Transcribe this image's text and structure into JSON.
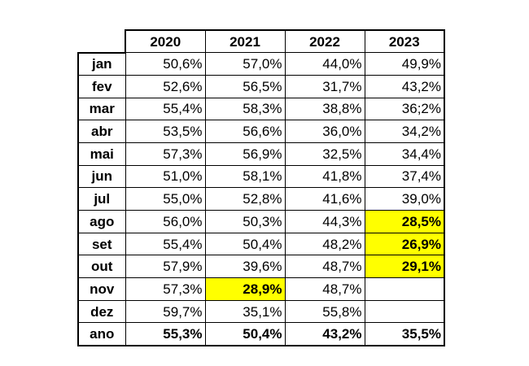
{
  "table": {
    "columns": [
      "2020",
      "2021",
      "2022",
      "2023"
    ],
    "rows": [
      {
        "label": "jan",
        "values": [
          "50,6%",
          "57,0%",
          "44,0%",
          "49,9%"
        ]
      },
      {
        "label": "fev",
        "values": [
          "52,6%",
          "56,5%",
          "31,7%",
          "43,2%"
        ]
      },
      {
        "label": "mar",
        "values": [
          "55,4%",
          "58,3%",
          "38,8%",
          "36;2%"
        ]
      },
      {
        "label": "abr",
        "values": [
          "53,5%",
          "56,6%",
          "36,0%",
          "34,2%"
        ]
      },
      {
        "label": "mai",
        "values": [
          "57,3%",
          "56,9%",
          "32,5%",
          "34,4%"
        ]
      },
      {
        "label": "jun",
        "values": [
          "51,0%",
          "58,1%",
          "41,8%",
          "37,4%"
        ]
      },
      {
        "label": "jul",
        "values": [
          "55,0%",
          "52,8%",
          "41,6%",
          "39,0%"
        ]
      },
      {
        "label": "ago",
        "values": [
          "56,0%",
          "50,3%",
          "44,3%",
          "28,5%"
        ]
      },
      {
        "label": "set",
        "values": [
          "55,4%",
          "50,4%",
          "48,2%",
          "26,9%"
        ]
      },
      {
        "label": "out",
        "values": [
          "57,9%",
          "39,6%",
          "48,7%",
          "29,1%"
        ]
      },
      {
        "label": "nov",
        "values": [
          "57,3%",
          "28,9%",
          "48,7%",
          ""
        ]
      },
      {
        "label": "dez",
        "values": [
          "59,7%",
          "35,1%",
          "55,8%",
          ""
        ]
      },
      {
        "label": "ano",
        "values": [
          "55,3%",
          "50,4%",
          "43,2%",
          "35,5%"
        ]
      }
    ],
    "highlight_color": "#ffff00",
    "highlighted_cells": [
      "ago-2023",
      "set-2023",
      "out-2023",
      "nov-2021"
    ]
  }
}
